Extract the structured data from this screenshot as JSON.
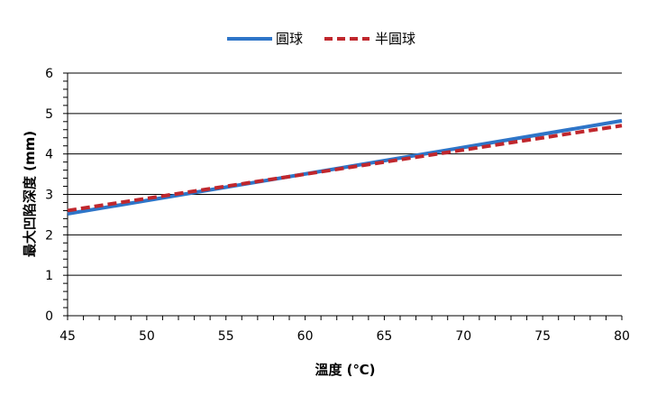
{
  "chart_data": {
    "type": "line",
    "xlabel": "溫度 (℃)",
    "ylabel": "最大凹陷深度 (mm)",
    "xlim": [
      45,
      80
    ],
    "ylim": [
      0,
      6
    ],
    "x_ticks": [
      45,
      50,
      55,
      60,
      65,
      70,
      75,
      80
    ],
    "y_ticks": [
      0,
      1,
      2,
      3,
      4,
      5,
      6
    ],
    "grid": "horizontal",
    "legend_position": "top-center",
    "series": [
      {
        "name": "圓球",
        "color": "#2e75c8",
        "style": "solid",
        "x": [
          45,
          80
        ],
        "y": [
          2.52,
          4.82
        ]
      },
      {
        "name": "半圓球",
        "color": "#c0272d",
        "style": "dashed",
        "x": [
          45,
          80
        ],
        "y": [
          2.6,
          4.7
        ]
      }
    ]
  }
}
